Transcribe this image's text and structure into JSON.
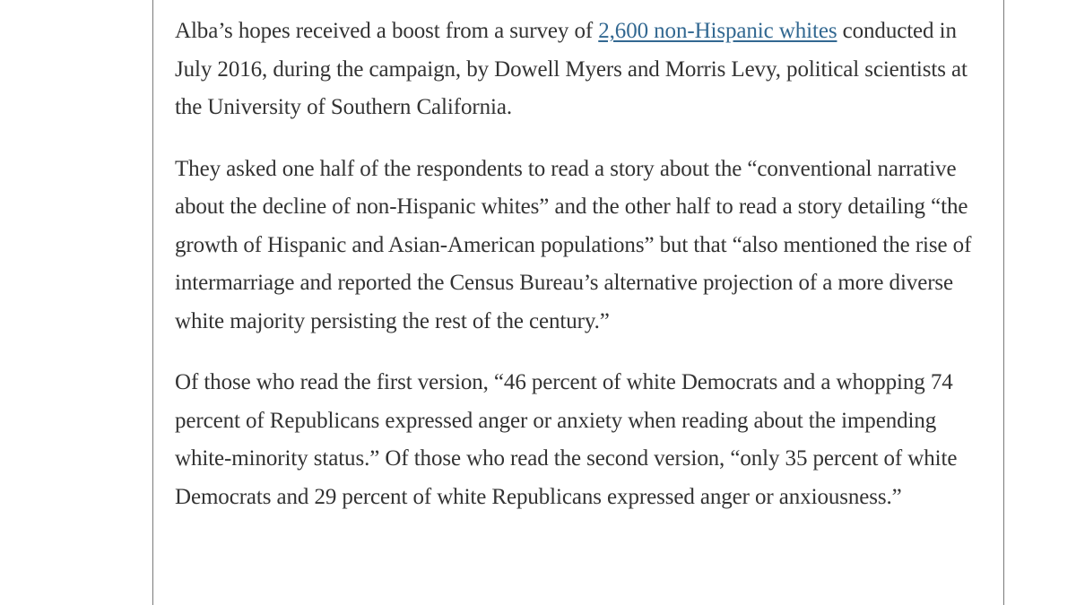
{
  "article": {
    "p1": {
      "before_link": "Alba’s hopes received a boost from a survey of ",
      "link": "2,600 non-Hispanic whites",
      "after_link": " conducted in July 2016, during the campaign, by Dowell Myers and Morris Levy, political scientists at the University of Southern California."
    },
    "p2": "They asked one half of the respondents to read a story about the “conventional narrative about the decline of non-Hispanic whites” and the other half to read a story detailing “the growth of Hispanic and Asian-American populations” but that “also mentioned the rise of intermarriage and reported the Census Bureau’s alternative projection of a more diverse white majority persisting the rest of the century.”",
    "p3": "Of those who read the first version, “46 percent of white Democrats and a whopping 74 percent of Republicans expressed anger or anxiety when reading about the impending white-minority status.” Of those who read the second version, “only 35 percent of white Democrats and 29 percent of white Republicans expressed anger or anxiousness.”"
  },
  "colors": {
    "text": "#333333",
    "link": "#326891",
    "frame_border": "#7a7a7a"
  }
}
